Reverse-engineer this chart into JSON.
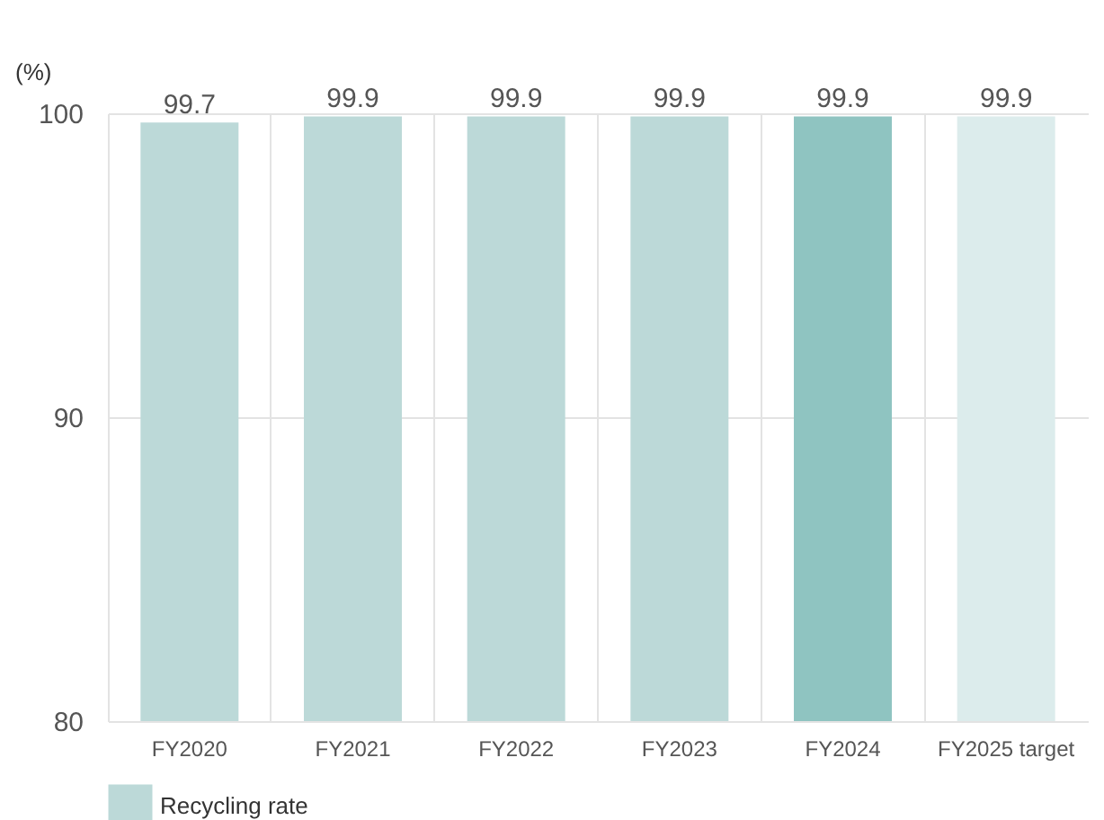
{
  "chart_data": {
    "type": "bar",
    "ylabel": "(%)",
    "categories": [
      "FY2020",
      "FY2021",
      "FY2022",
      "FY2023",
      "FY2024",
      "FY2025 target"
    ],
    "series": [
      {
        "name": "Recycling rate",
        "color": "#bcd9d8",
        "values": [
          99.7,
          99.9,
          99.9,
          99.9,
          99.9,
          99.9
        ],
        "colors": [
          "#bcd9d8",
          "#bcd9d8",
          "#bcd9d8",
          "#bcd9d8",
          "#8fc4c1",
          "#dcecec"
        ]
      }
    ],
    "ylim": [
      80,
      100
    ],
    "yticks": [
      80,
      90,
      100
    ],
    "grid": true,
    "data_labels": true,
    "legend": "bottom"
  }
}
